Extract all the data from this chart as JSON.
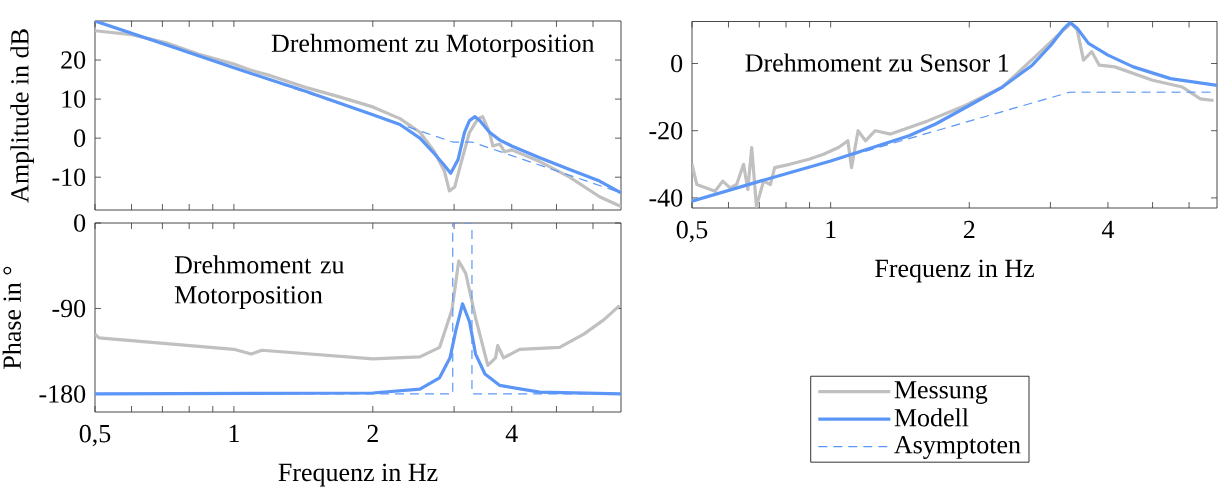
{
  "chart_data": [
    {
      "type": "line",
      "ylabel": "Amplitude in dB",
      "log": "x",
      "tick_labels": "y",
      "xlim": [
        0.5,
        6.9
      ],
      "ylim": [
        -18.4,
        30
      ],
      "xticks": [
        {
          "value": 0.5,
          "label": null
        },
        {
          "value": 0.6,
          "label": null
        },
        {
          "value": 0.7,
          "label": null
        },
        {
          "value": 0.8,
          "label": null
        },
        {
          "value": 0.9,
          "label": null
        },
        {
          "value": 1,
          "label": null
        },
        {
          "value": 2,
          "label": null
        },
        {
          "value": 3,
          "label": null
        },
        {
          "value": 4,
          "label": null
        },
        {
          "value": 5,
          "label": null
        },
        {
          "value": 6,
          "label": null
        }
      ],
      "yticks": [
        -10,
        0,
        10,
        20
      ],
      "annotations": [
        "Drehmoment zu Motorposition"
      ],
      "series": [
        {
          "color": "#c0c0c0",
          "x": [
            0.5,
            0.6,
            0.71,
            0.84,
            1.0,
            1.08,
            1.2,
            1.43,
            1.7,
            2.0,
            2.29,
            2.53,
            2.72,
            2.86,
            2.93,
            3.01,
            3.12,
            3.24,
            3.38,
            3.46,
            3.58,
            3.64,
            3.77,
            3.86,
            4.0,
            4.6,
            5.34,
            6.2,
            6.9
          ],
          "values": [
            27.5,
            26.5,
            24.5,
            21.5,
            19,
            17.5,
            16,
            13,
            10.5,
            8,
            5,
            1.5,
            -3.5,
            -8.5,
            -13.5,
            -12.5,
            -5.5,
            1.5,
            5,
            5.5,
            1.5,
            -2,
            -1.5,
            -3.5,
            -3,
            -6,
            -10,
            -15,
            -17.5
          ]
        },
        {
          "color": "#5b96f7",
          "x": [
            0.5,
            0.71,
            1.0,
            1.43,
            2.0,
            2.29,
            2.53,
            2.72,
            2.86,
            2.95,
            3.06,
            3.16,
            3.24,
            3.33,
            3.41,
            3.58,
            3.77,
            4.0,
            4.6,
            5.34,
            6.2,
            6.9
          ],
          "values": [
            30,
            24,
            18,
            12,
            6,
            3.5,
            0,
            -4,
            -7,
            -9,
            -5.5,
            1.5,
            4.5,
            5.5,
            4.5,
            1.5,
            -0.5,
            -2,
            -5,
            -8,
            -11,
            -14
          ]
        },
        {
          "color": "#5b96f7",
          "line_style": "dashed",
          "x": [
            0.5,
            2.98,
            3.28,
            6.9
          ],
          "values": [
            30,
            -1,
            -1,
            -14
          ]
        }
      ]
    },
    {
      "type": "line",
      "xlabel": "Frequenz in Hz",
      "ylabel": "Phase in °",
      "log": "x",
      "xlim": [
        0.5,
        6.9
      ],
      "ylim": [
        -199,
        0
      ],
      "xticks": [
        {
          "value": 0.5,
          "label": "0,5"
        },
        {
          "value": 0.6,
          "label": null
        },
        {
          "value": 0.7,
          "label": null
        },
        {
          "value": 0.8,
          "label": null
        },
        {
          "value": 0.9,
          "label": null
        },
        1,
        2,
        {
          "value": 3,
          "label": null
        },
        4,
        {
          "value": 5,
          "label": null
        },
        {
          "value": 6,
          "label": null
        }
      ],
      "yticks": [
        -180,
        -90,
        0
      ],
      "annotations": [
        "Drehmoment zu Motorposition"
      ],
      "series": [
        {
          "color": "#c0c0c0",
          "x": [
            0.5,
            0.51,
            1.0,
            1.09,
            1.15,
            2.0,
            2.53,
            2.79,
            2.97,
            3.07,
            3.18,
            3.34,
            3.55,
            3.69,
            3.73,
            3.84,
            4.16,
            5.08,
            5.73,
            6.33,
            6.85
          ],
          "values": [
            -117,
            -121,
            -133,
            -138,
            -134,
            -143,
            -141,
            -131,
            -91,
            -40,
            -53,
            -100,
            -150,
            -142,
            -129,
            -142,
            -133,
            -131,
            -117,
            -102,
            -87
          ]
        },
        {
          "color": "#5b96f7",
          "x": [
            0.5,
            2.0,
            2.53,
            2.79,
            2.94,
            3.03,
            3.13,
            3.24,
            3.34,
            3.5,
            3.77,
            4.6,
            6.9
          ],
          "values": [
            -180,
            -179,
            -175,
            -163,
            -142,
            -112,
            -85,
            -104,
            -138,
            -159,
            -171,
            -178,
            -180
          ]
        },
        {
          "color": "#5b96f7",
          "line_style": "dashed",
          "x": [
            0.5,
            2.98,
            2.98,
            3.28,
            3.28,
            6.9
          ],
          "values": [
            -180,
            -180,
            0,
            0,
            -180,
            -180
          ]
        }
      ]
    },
    {
      "type": "line",
      "xlabel": "Frequenz in Hz",
      "log": "x",
      "legend": "bottom",
      "xlim": [
        0.5,
        6.9
      ],
      "ylim": [
        -43,
        12.5
      ],
      "xticks": [
        {
          "value": 0.5,
          "label": "0,5"
        },
        {
          "value": 0.6,
          "label": null
        },
        {
          "value": 0.7,
          "label": null
        },
        {
          "value": 0.8,
          "label": null
        },
        {
          "value": 0.9,
          "label": null
        },
        1,
        2,
        {
          "value": 3,
          "label": null
        },
        4,
        {
          "value": 5,
          "label": null
        },
        {
          "value": 6,
          "label": null
        }
      ],
      "yticks": [
        -40,
        -20,
        0
      ],
      "annotations": [
        "Drehmoment zu Sensor 1"
      ],
      "series": [
        {
          "name": "Messung",
          "color": "#c0c0c0",
          "x": [
            0.5,
            0.512,
            0.561,
            0.583,
            0.605,
            0.625,
            0.647,
            0.661,
            0.674,
            0.69,
            0.715,
            0.74,
            0.756,
            0.815,
            0.897,
            0.965,
            1.04,
            1.09,
            1.11,
            1.147,
            1.19,
            1.25,
            1.35,
            1.63,
            1.96,
            2.36,
            2.83,
            3.12,
            3.33,
            3.43,
            3.54,
            3.69,
            3.83,
            4.14,
            5.0,
            5.8,
            6.35,
            6.78
          ],
          "values": [
            -30,
            -36,
            -38,
            -35,
            -37,
            -36,
            -30,
            -37.5,
            -25,
            -42.5,
            -35,
            -36,
            -31,
            -30,
            -28.5,
            -27,
            -25,
            -23,
            -31,
            -20,
            -23,
            -20,
            -21,
            -17,
            -12.5,
            -7,
            3,
            8.5,
            12,
            10,
            1,
            3.5,
            -0.5,
            -1,
            -5,
            -7,
            -10.5,
            -11
          ]
        },
        {
          "name": "Modell",
          "color": "#5b96f7",
          "x": [
            0.5,
            0.703,
            1.0,
            1.48,
            1.69,
            2.0,
            2.36,
            2.74,
            3.01,
            3.19,
            3.31,
            3.43,
            3.63,
            4.0,
            4.54,
            5.47,
            6.9
          ],
          "values": [
            -41,
            -35,
            -29,
            -21.5,
            -18,
            -12.5,
            -7,
            -0.5,
            5.5,
            10,
            12.2,
            10.5,
            6,
            2.5,
            -1,
            -4.5,
            -6.5
          ]
        },
        {
          "name": "Asymptoten",
          "color": "#5b96f7",
          "line_style": "dashed",
          "x": [
            0.5,
            3.31,
            6.9
          ],
          "values": [
            -41,
            -8.5,
            -8.5
          ]
        }
      ]
    }
  ]
}
